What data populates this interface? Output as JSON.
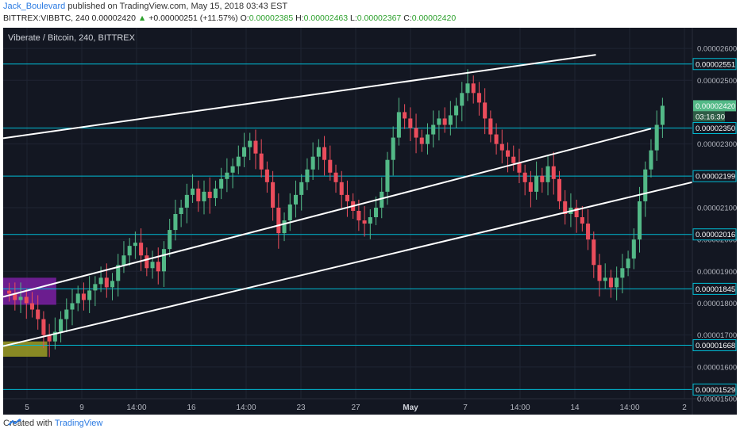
{
  "header": {
    "author": "Jack_Boulevard",
    "published_text": "published on TradingView.com, May 15, 2018 03:43 EST",
    "symbol": "BITTREX:VIBBTC, 240",
    "last": "0.00002420",
    "change": "+0.00000251 (+11.57%)",
    "open_label": "O:",
    "open": "0.00002385",
    "high_label": "H:",
    "high": "0.00002463",
    "low_label": "L:",
    "low": "0.00002367",
    "close_label": "C:",
    "close": "0.00002420"
  },
  "legend": "Viberate / Bitcoin, 240, BITTREX",
  "footer": {
    "created_with": "Created with",
    "brand": "TradingView"
  },
  "colors": {
    "background": "#131722",
    "up": "#53b987",
    "down": "#eb4d5c",
    "level": "#00bcd4",
    "channel": "#ffffff",
    "zone_purple": "#7b1fa2",
    "zone_yellow": "#9e9d24"
  },
  "chart_data": {
    "type": "candlestick",
    "ylim": [
      1.5e-05,
      2.65e-05
    ],
    "y_ticks": [
      "0.00002600",
      "0.00002500",
      "0.00002300",
      "0.00002100",
      "0.00002000",
      "0.00001900",
      "0.00001800",
      "0.00001700",
      "0.00001600",
      "0.00001500"
    ],
    "x_ticks": [
      "5",
      "9",
      "14:00",
      "16",
      "14:00",
      "23",
      "27",
      "May",
      "7",
      "14:00",
      "14",
      "14:00",
      "2"
    ],
    "countdown": "03:16:30",
    "last_price_label": "0.00002420",
    "horizontal_levels": [
      {
        "value": 2.551e-05,
        "label": "0.00002551"
      },
      {
        "value": 2.35e-05,
        "label": "0.00002350"
      },
      {
        "value": 2.199e-05,
        "label": "0.00002199"
      },
      {
        "value": 2.016e-05,
        "label": "0.00002016"
      },
      {
        "value": 1.845e-05,
        "label": "0.00001845"
      },
      {
        "value": 1.668e-05,
        "label": "0.00001668"
      },
      {
        "value": 1.529e-05,
        "label": "0.00001529"
      }
    ],
    "channel_lines": [
      {
        "p1": [
          0.0,
          2.318e-05
        ],
        "p2": [
          0.86,
          2.58e-05
        ]
      },
      {
        "p1": [
          0.0,
          1.82e-05
        ],
        "p2": [
          0.94,
          2.348e-05
        ]
      },
      {
        "p1": [
          0.0,
          1.665e-05
        ],
        "p2": [
          1.0,
          2.18e-05
        ]
      }
    ],
    "zones": [
      {
        "x0": 0.0,
        "x1": 0.077,
        "y0": 1.88e-05,
        "y1": 1.795e-05,
        "color": "zone_purple"
      },
      {
        "x0": 0.0,
        "x1": 0.064,
        "y0": 1.68e-05,
        "y1": 1.632e-05,
        "color": "zone_yellow"
      }
    ],
    "candles_close": [
      1.83e-05,
      1.81e-05,
      1.82e-05,
      1.8e-05,
      1.78e-05,
      1.75e-05,
      1.7e-05,
      1.68e-05,
      1.71e-05,
      1.75e-05,
      1.78e-05,
      1.8e-05,
      1.83e-05,
      1.81e-05,
      1.84e-05,
      1.86e-05,
      1.88e-05,
      1.85e-05,
      1.87e-05,
      1.92e-05,
      1.95e-05,
      1.98e-05,
      1.99e-05,
      1.95e-05,
      1.91e-05,
      1.93e-05,
      1.9e-05,
      1.97e-05,
      2.03e-05,
      2.08e-05,
      2.1e-05,
      2.14e-05,
      2.16e-05,
      2.12e-05,
      2.15e-05,
      2.13e-05,
      2.16e-05,
      2.19e-05,
      2.21e-05,
      2.23e-05,
      2.26e-05,
      2.29e-05,
      2.31e-05,
      2.27e-05,
      2.22e-05,
      2.18e-05,
      2.1e-05,
      2.02e-05,
      2.06e-05,
      2.11e-05,
      2.14e-05,
      2.18e-05,
      2.22e-05,
      2.26e-05,
      2.29e-05,
      2.25e-05,
      2.21e-05,
      2.18e-05,
      2.14e-05,
      2.12e-05,
      2.09e-05,
      2.06e-05,
      2.05e-05,
      2.07e-05,
      2.1e-05,
      2.15e-05,
      2.25e-05,
      2.32e-05,
      2.4e-05,
      2.38e-05,
      2.35e-05,
      2.32e-05,
      2.3e-05,
      2.33e-05,
      2.36e-05,
      2.38e-05,
      2.36e-05,
      2.39e-05,
      2.42e-05,
      2.46e-05,
      2.49e-05,
      2.46e-05,
      2.43e-05,
      2.38e-05,
      2.33e-05,
      2.3e-05,
      2.28e-05,
      2.26e-05,
      2.24e-05,
      2.21e-05,
      2.18e-05,
      2.15e-05,
      2.2e-05,
      2.18e-05,
      2.23e-05,
      2.19e-05,
      2.12e-05,
      2.08e-05,
      2.1e-05,
      2.07e-05,
      2.05e-05,
      2e-05,
      1.92e-05,
      1.87e-05,
      1.88e-05,
      1.85e-05,
      1.88e-05,
      1.91e-05,
      1.94e-05,
      2e-05,
      2.12e-05,
      2.22e-05,
      2.28e-05,
      2.36e-05,
      2.42e-05
    ]
  }
}
